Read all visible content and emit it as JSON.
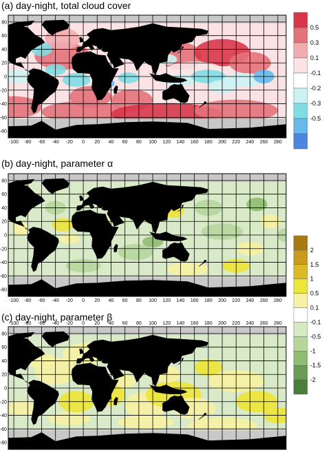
{
  "panels": [
    {
      "id": "a",
      "title": "(a) day-night, total cloud cover",
      "x_ticks": [
        "-100",
        "-80",
        "-60",
        "-40",
        "-20",
        "0",
        "20",
        "40",
        "60",
        "80",
        "100",
        "120",
        "140",
        "160",
        "180",
        "200",
        "220",
        "240",
        "260",
        "280"
      ],
      "y_ticks": [
        "80",
        "60",
        "40",
        "20",
        "0",
        "-20",
        "-40",
        "-60",
        "-80"
      ],
      "x_tick_side": "bottom",
      "colorbar": "cloud"
    },
    {
      "id": "b",
      "title": "(b) day-night, parameter α",
      "x_ticks": [
        "-100",
        "-80",
        "-60",
        "-40",
        "-20",
        "0",
        "20",
        "40",
        "60",
        "80",
        "100",
        "120",
        "140",
        "160",
        "180",
        "200",
        "220",
        "240",
        "260",
        "280"
      ],
      "y_ticks": [
        "80",
        "60",
        "40",
        "20",
        "0",
        "-20",
        "-40",
        "-60",
        "-80"
      ],
      "x_tick_side": "bottom",
      "colorbar": "param"
    },
    {
      "id": "c",
      "title": "(c) day-night, parameter β",
      "x_ticks": [
        "-100",
        "-80",
        "-60",
        "-40",
        "-20",
        "0",
        "20",
        "40",
        "60",
        "80",
        "100",
        "120",
        "140",
        "160",
        "180",
        "200",
        "220",
        "240",
        "260",
        "280"
      ],
      "y_ticks": [
        "80",
        "60",
        "40",
        "20",
        "0",
        "-20",
        "-40",
        "-60",
        "-80"
      ],
      "x_tick_side": "top",
      "colorbar": "param"
    }
  ],
  "colorbars": {
    "cloud": {
      "labels": [
        "0.5",
        "0.3",
        "0.1",
        "-0.1",
        "-0.2",
        "-0.3",
        "-0.5"
      ],
      "colors": [
        "#d8374a",
        "#e4727a",
        "#f1acb0",
        "#fbe3e5",
        "#ffffff",
        "#cdf2f4",
        "#80dde4",
        "#66b9ea",
        "#4c86df"
      ]
    },
    "param": {
      "labels": [
        "2",
        "1.5",
        "1",
        "0.5",
        "0.1",
        "-0.1",
        "-0.5",
        "-1",
        "-1.5",
        "-2"
      ],
      "colors": [
        "#a97a12",
        "#c89b1c",
        "#dcbb22",
        "#ece636",
        "#f6f2a2",
        "#ffffff",
        "#d6e8c4",
        "#b6d69c",
        "#8fbd72",
        "#6a9c55",
        "#4a7e3a"
      ]
    }
  },
  "fills": {
    "land": "#000000",
    "ocean_base_a": "#fbe3e5",
    "ocean_base_bc": "#d9eac9",
    "sea_ice": "#c8c8c8",
    "grid": "#000000"
  }
}
